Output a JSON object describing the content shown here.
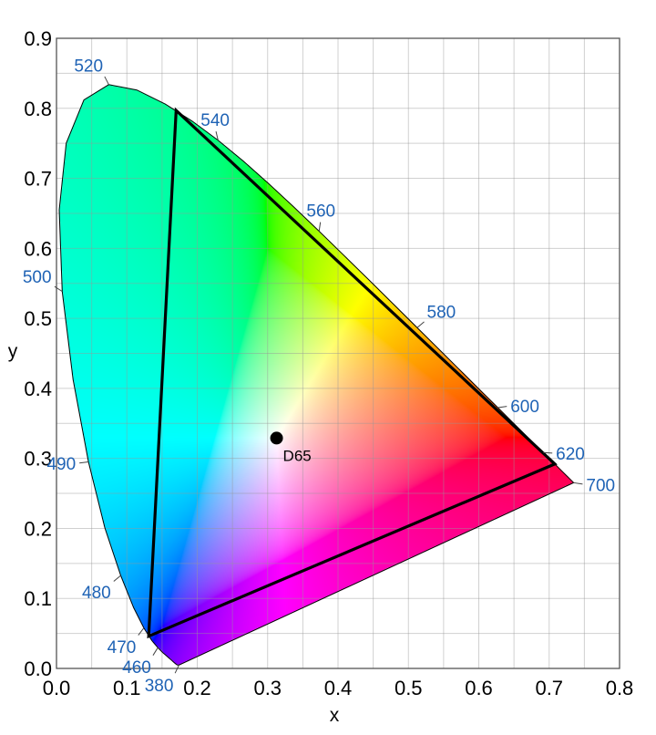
{
  "chart_data": {
    "type": "scatter",
    "xlabel": "x",
    "ylabel": "y",
    "xlim": [
      0,
      0.8
    ],
    "ylim": [
      0,
      0.9
    ],
    "xticks": [
      "0.0",
      "0.1",
      "0.2",
      "0.3",
      "0.4",
      "0.5",
      "0.6",
      "0.7",
      "0.8"
    ],
    "yticks": [
      "0.0",
      "0.1",
      "0.2",
      "0.3",
      "0.4",
      "0.5",
      "0.6",
      "0.7",
      "0.8",
      "0.9"
    ],
    "grid": true,
    "grid_step": 0.05,
    "spectral_locus": [
      [
        380,
        0.1741,
        0.005
      ],
      [
        390,
        0.1738,
        0.0049
      ],
      [
        400,
        0.1733,
        0.0048
      ],
      [
        410,
        0.1726,
        0.0048
      ],
      [
        420,
        0.1714,
        0.0051
      ],
      [
        425,
        0.1703,
        0.0058
      ],
      [
        430,
        0.1689,
        0.0069
      ],
      [
        435,
        0.1669,
        0.0086
      ],
      [
        440,
        0.1644,
        0.0109
      ],
      [
        445,
        0.1611,
        0.0138
      ],
      [
        450,
        0.1566,
        0.0177
      ],
      [
        455,
        0.151,
        0.0227
      ],
      [
        460,
        0.144,
        0.0297
      ],
      [
        465,
        0.1355,
        0.0399
      ],
      [
        470,
        0.1241,
        0.0578
      ],
      [
        475,
        0.1096,
        0.0868
      ],
      [
        480,
        0.0913,
        0.1327
      ],
      [
        485,
        0.0687,
        0.2007
      ],
      [
        490,
        0.0454,
        0.295
      ],
      [
        495,
        0.0235,
        0.4127
      ],
      [
        500,
        0.0082,
        0.5384
      ],
      [
        505,
        0.0039,
        0.6548
      ],
      [
        510,
        0.0139,
        0.7502
      ],
      [
        515,
        0.0389,
        0.812
      ],
      [
        520,
        0.0743,
        0.8338
      ],
      [
        525,
        0.1142,
        0.8262
      ],
      [
        530,
        0.1547,
        0.8059
      ],
      [
        535,
        0.1929,
        0.7816
      ],
      [
        540,
        0.2296,
        0.7543
      ],
      [
        545,
        0.2658,
        0.7243
      ],
      [
        550,
        0.3016,
        0.6923
      ],
      [
        555,
        0.3373,
        0.6589
      ],
      [
        560,
        0.3731,
        0.6245
      ],
      [
        565,
        0.4087,
        0.5896
      ],
      [
        570,
        0.4441,
        0.5547
      ],
      [
        575,
        0.4788,
        0.5202
      ],
      [
        580,
        0.5125,
        0.4866
      ],
      [
        585,
        0.5448,
        0.4544
      ],
      [
        590,
        0.5752,
        0.4242
      ],
      [
        595,
        0.6029,
        0.3965
      ],
      [
        600,
        0.627,
        0.3725
      ],
      [
        605,
        0.6482,
        0.3514
      ],
      [
        610,
        0.6658,
        0.334
      ],
      [
        615,
        0.6801,
        0.3197
      ],
      [
        620,
        0.6915,
        0.3083
      ],
      [
        625,
        0.7006,
        0.2993
      ],
      [
        630,
        0.7079,
        0.292
      ],
      [
        640,
        0.719,
        0.2809
      ],
      [
        650,
        0.726,
        0.274
      ],
      [
        660,
        0.73,
        0.27
      ],
      [
        680,
        0.7334,
        0.2666
      ],
      [
        700,
        0.7347,
        0.2653
      ]
    ],
    "wavelength_labels": [
      "380",
      "460",
      "470",
      "480",
      "490",
      "500",
      "520",
      "540",
      "560",
      "580",
      "600",
      "620",
      "700"
    ],
    "gamut_triangle": [
      [
        0.708,
        0.292
      ],
      [
        0.17,
        0.797
      ],
      [
        0.131,
        0.046
      ]
    ],
    "white_point": {
      "label": "D65",
      "x": 0.3127,
      "y": 0.329
    },
    "colors": {
      "wavelength_label": "#1f63b5",
      "triangle": "#000000",
      "grid": "#c8c8c8"
    }
  }
}
